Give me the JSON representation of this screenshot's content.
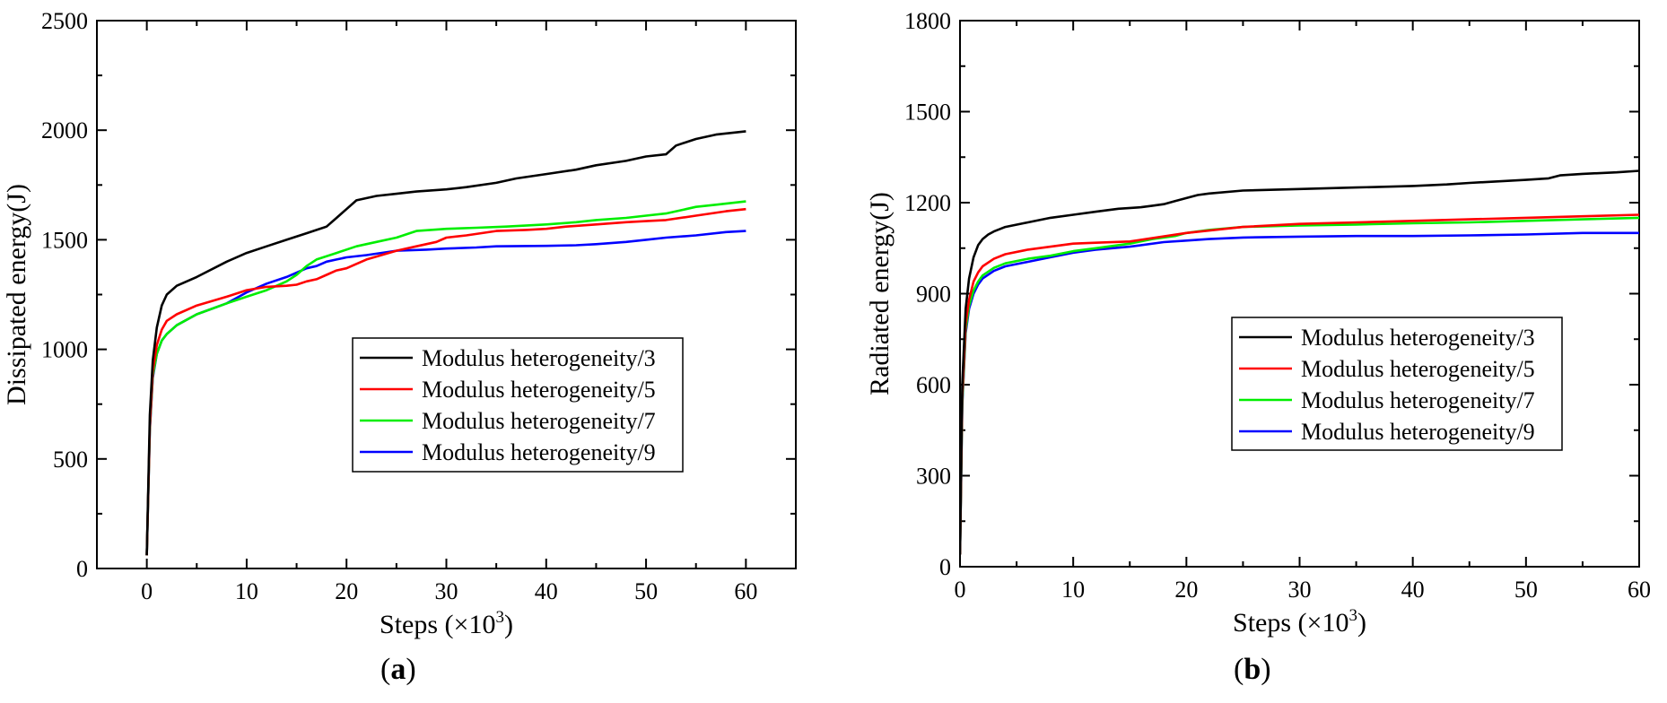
{
  "chart_data": [
    {
      "panel": "a",
      "type": "line",
      "xlabel": "Steps (×10",
      "xlabel_sup": "3",
      "xlabel_close": ")",
      "ylabel": "Dissipated energy(J)",
      "xlim": [
        -5,
        65
      ],
      "ylim": [
        0,
        2500
      ],
      "xticks": [
        0,
        10,
        20,
        30,
        40,
        50,
        60
      ],
      "yticks": [
        0,
        500,
        1000,
        1500,
        2000,
        2500
      ],
      "legend_position": "center-right",
      "series": [
        {
          "name": "Modulus heterogeneity/3",
          "color": "#000000",
          "x": [
            0,
            0.3,
            0.6,
            1,
            1.5,
            2,
            3,
            5,
            8,
            10,
            12,
            14,
            16,
            18,
            19,
            20,
            21,
            23,
            25,
            27,
            30,
            32,
            35,
            37,
            40,
            43,
            45,
            48,
            50,
            52,
            53,
            55,
            57,
            60
          ],
          "y": [
            60,
            700,
            950,
            1100,
            1200,
            1250,
            1290,
            1330,
            1400,
            1440,
            1470,
            1500,
            1530,
            1560,
            1600,
            1640,
            1680,
            1700,
            1710,
            1720,
            1730,
            1740,
            1760,
            1780,
            1800,
            1820,
            1840,
            1860,
            1880,
            1890,
            1930,
            1960,
            1980,
            1995
          ]
        },
        {
          "name": "Modulus heterogeneity/5",
          "color": "#ff0000",
          "x": [
            0,
            0.3,
            0.6,
            1,
            1.5,
            2,
            3,
            5,
            8,
            10,
            12,
            14,
            15,
            16,
            17,
            18,
            19,
            20,
            21,
            22,
            25,
            27,
            29,
            30,
            32,
            35,
            38,
            40,
            42,
            45,
            48,
            50,
            52,
            55,
            58,
            60
          ],
          "y": [
            60,
            650,
            900,
            1020,
            1090,
            1130,
            1160,
            1200,
            1240,
            1270,
            1285,
            1290,
            1295,
            1310,
            1320,
            1340,
            1360,
            1370,
            1390,
            1410,
            1450,
            1470,
            1490,
            1510,
            1520,
            1540,
            1545,
            1550,
            1560,
            1570,
            1580,
            1585,
            1590,
            1610,
            1630,
            1640
          ]
        },
        {
          "name": "Modulus heterogeneity/7",
          "color": "#00ee00",
          "x": [
            0,
            0.3,
            0.6,
            1,
            1.5,
            2,
            3,
            5,
            8,
            10,
            12,
            14,
            15,
            16,
            17,
            19,
            21,
            23,
            25,
            27,
            30,
            33,
            36,
            40,
            43,
            45,
            48,
            50,
            52,
            54,
            55,
            57,
            60
          ],
          "y": [
            60,
            640,
            880,
            980,
            1040,
            1070,
            1110,
            1160,
            1210,
            1240,
            1270,
            1310,
            1340,
            1380,
            1410,
            1440,
            1470,
            1490,
            1510,
            1540,
            1550,
            1555,
            1560,
            1570,
            1580,
            1590,
            1600,
            1610,
            1620,
            1640,
            1650,
            1660,
            1675
          ]
        },
        {
          "name": "Modulus heterogeneity/9",
          "color": "#0000ff",
          "x": [
            0,
            0.3,
            0.6,
            1,
            1.5,
            2,
            3,
            5,
            8,
            10,
            12,
            14,
            15,
            16,
            17,
            18,
            19,
            20,
            22,
            25,
            28,
            30,
            33,
            35,
            40,
            43,
            45,
            48,
            50,
            52,
            55,
            58,
            60
          ],
          "y": [
            60,
            630,
            870,
            980,
            1040,
            1070,
            1110,
            1160,
            1210,
            1260,
            1300,
            1330,
            1350,
            1370,
            1380,
            1400,
            1410,
            1420,
            1430,
            1450,
            1455,
            1460,
            1465,
            1470,
            1472,
            1475,
            1480,
            1490,
            1500,
            1510,
            1520,
            1535,
            1540
          ]
        }
      ]
    },
    {
      "panel": "b",
      "type": "line",
      "xlabel": "Steps (×10",
      "xlabel_sup": "3",
      "xlabel_close": ")",
      "ylabel": "Radiated energy(J)",
      "xlim": [
        0,
        60
      ],
      "ylim": [
        0,
        1800
      ],
      "xticks": [
        0,
        10,
        20,
        30,
        40,
        50,
        60
      ],
      "yticks": [
        0,
        300,
        600,
        900,
        1200,
        1500,
        1800
      ],
      "legend_position": "center-right",
      "series": [
        {
          "name": "Modulus heterogeneity/3",
          "color": "#000000",
          "x": [
            0,
            0.2,
            0.5,
            0.8,
            1.2,
            1.6,
            2,
            2.5,
            3,
            4,
            6,
            8,
            10,
            12,
            14,
            16,
            17,
            18,
            19,
            20,
            21,
            22,
            25,
            30,
            35,
            40,
            43,
            45,
            50,
            52,
            53,
            55,
            58,
            60
          ],
          "y": [
            40,
            600,
            850,
            950,
            1020,
            1060,
            1080,
            1095,
            1105,
            1120,
            1135,
            1150,
            1160,
            1170,
            1180,
            1185,
            1190,
            1195,
            1205,
            1215,
            1225,
            1230,
            1240,
            1245,
            1250,
            1255,
            1260,
            1265,
            1275,
            1280,
            1290,
            1295,
            1300,
            1305
          ]
        },
        {
          "name": "Modulus heterogeneity/5",
          "color": "#ff0000",
          "x": [
            0,
            0.2,
            0.5,
            0.8,
            1.2,
            1.6,
            2,
            3,
            4,
            6,
            8,
            10,
            12,
            15,
            20,
            25,
            30,
            35,
            40,
            45,
            50,
            55,
            60
          ],
          "y": [
            40,
            560,
            800,
            880,
            940,
            970,
            990,
            1015,
            1030,
            1045,
            1055,
            1065,
            1068,
            1072,
            1100,
            1120,
            1130,
            1135,
            1140,
            1145,
            1150,
            1155,
            1160
          ]
        },
        {
          "name": "Modulus heterogeneity/7",
          "color": "#00ee00",
          "x": [
            0,
            0.2,
            0.5,
            0.8,
            1.2,
            1.6,
            2,
            3,
            4,
            6,
            8,
            10,
            12,
            15,
            17,
            19,
            20,
            22,
            25,
            30,
            35,
            40,
            45,
            50,
            55,
            60
          ],
          "y": [
            40,
            540,
            780,
            860,
            910,
            940,
            960,
            985,
            1000,
            1015,
            1025,
            1040,
            1050,
            1065,
            1080,
            1090,
            1100,
            1110,
            1120,
            1125,
            1128,
            1132,
            1135,
            1140,
            1145,
            1150
          ]
        },
        {
          "name": "Modulus heterogeneity/9",
          "color": "#0000ff",
          "x": [
            0,
            0.2,
            0.5,
            0.8,
            1.2,
            1.6,
            2,
            3,
            4,
            6,
            8,
            10,
            12,
            15,
            18,
            20,
            22,
            25,
            30,
            35,
            40,
            45,
            50,
            55,
            60
          ],
          "y": [
            40,
            530,
            770,
            850,
            900,
            930,
            950,
            975,
            990,
            1005,
            1020,
            1035,
            1045,
            1055,
            1070,
            1075,
            1080,
            1085,
            1088,
            1090,
            1090,
            1092,
            1095,
            1100,
            1100
          ]
        }
      ]
    }
  ],
  "panel_labels": {
    "a": "a",
    "b": "b"
  }
}
